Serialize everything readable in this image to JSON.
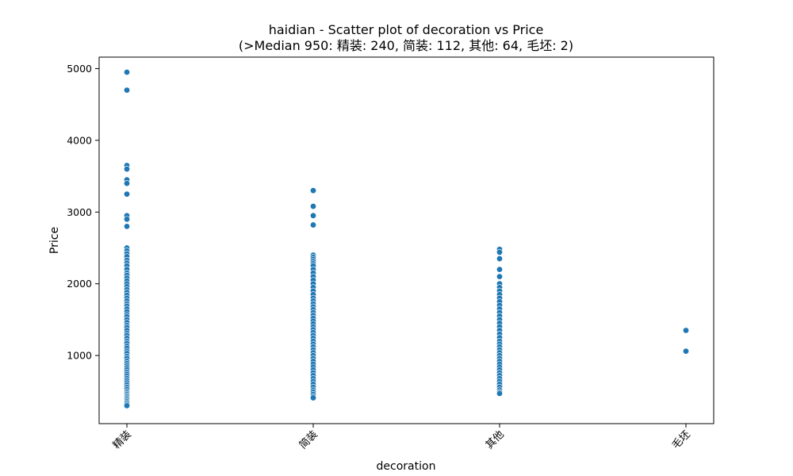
{
  "chart_data": {
    "type": "scatter",
    "title": "haidian - Scatter plot of decoration vs Price",
    "subtitle": "(>Median 950: 精装: 240, 简装: 112, 其他: 64, 毛坯: 2)",
    "xlabel": "decoration",
    "ylabel": "Price",
    "categories": [
      "精装",
      "简装",
      "其他",
      "毛坯"
    ],
    "ylim": [
      50,
      5160
    ],
    "yticks": [
      1000,
      2000,
      3000,
      4000,
      5000
    ],
    "grid": false,
    "marker_color": "#1f77b4",
    "series": [
      {
        "category": "精装",
        "values": [
          4950,
          4700,
          3650,
          3600,
          3450,
          3400,
          3250,
          2950,
          2900,
          2800,
          2500,
          2460,
          2420,
          2380,
          2330,
          2290,
          2250,
          2200,
          2150,
          2120,
          2080,
          2040,
          2000,
          1960,
          1920,
          1880,
          1840,
          1800,
          1760,
          1720,
          1690,
          1650,
          1610,
          1570,
          1540,
          1500,
          1460,
          1420,
          1390,
          1350,
          1310,
          1280,
          1240,
          1200,
          1170,
          1130,
          1100,
          1060,
          1030,
          990,
          960,
          920,
          890,
          860,
          830,
          800,
          770,
          740,
          710,
          680,
          650,
          620,
          590,
          560,
          530,
          500,
          480,
          460,
          440,
          420,
          400,
          380,
          360,
          340,
          320,
          300
        ]
      },
      {
        "category": "简装",
        "values": [
          3300,
          3080,
          2950,
          2820,
          2400,
          2370,
          2340,
          2310,
          2280,
          2250,
          2200,
          2150,
          2100,
          2050,
          2000,
          1950,
          1900,
          1850,
          1800,
          1760,
          1720,
          1680,
          1640,
          1600,
          1560,
          1520,
          1480,
          1440,
          1400,
          1360,
          1320,
          1280,
          1240,
          1200,
          1160,
          1120,
          1080,
          1040,
          1000,
          960,
          920,
          880,
          840,
          800,
          760,
          720,
          680,
          640,
          600,
          560,
          520,
          490,
          460,
          430,
          410
        ]
      },
      {
        "category": "其他",
        "values": [
          2480,
          2440,
          2350,
          2200,
          2100,
          2000,
          1950,
          1900,
          1850,
          1800,
          1750,
          1700,
          1650,
          1600,
          1550,
          1500,
          1450,
          1400,
          1350,
          1300,
          1250,
          1200,
          1160,
          1120,
          1080,
          1040,
          1000,
          960,
          920,
          880,
          840,
          800,
          760,
          720,
          680,
          640,
          600,
          560,
          520,
          490,
          470
        ]
      },
      {
        "category": "毛坯",
        "values": [
          1350,
          1060
        ]
      }
    ]
  }
}
